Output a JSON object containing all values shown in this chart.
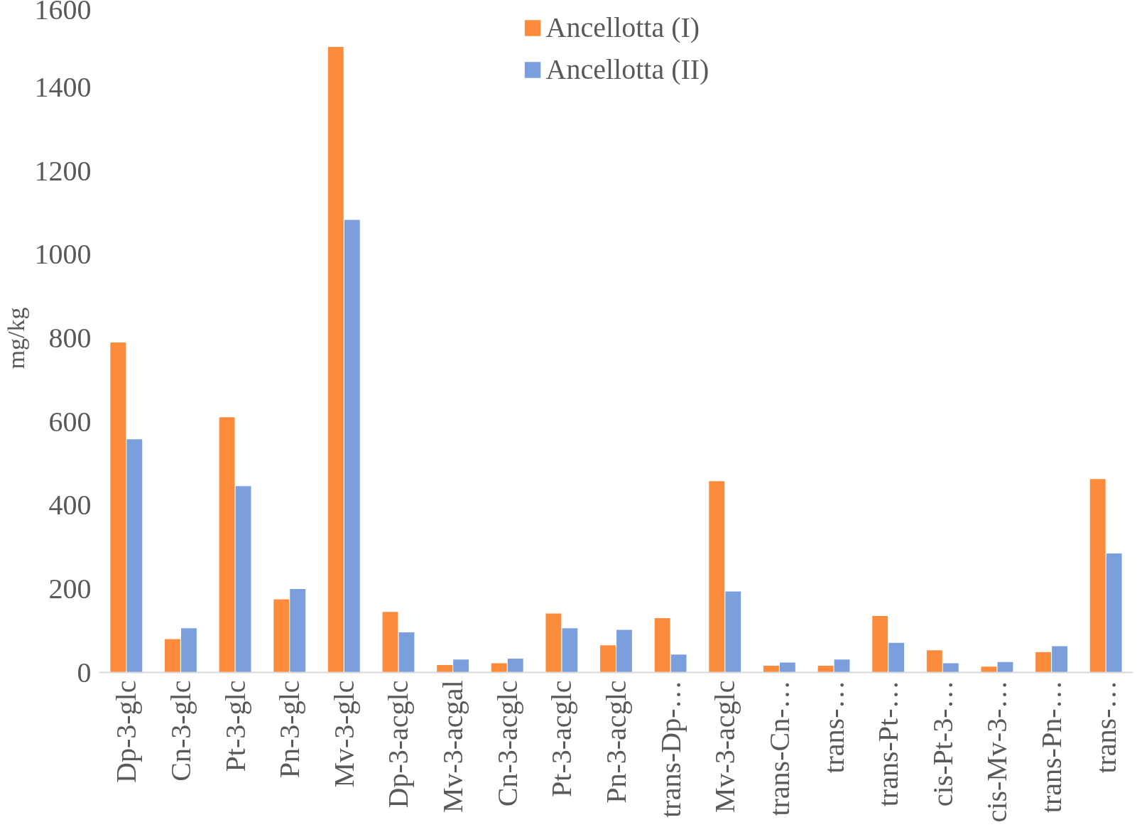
{
  "chart_data": {
    "type": "bar",
    "ylabel": "mg/kg",
    "categories": [
      "Dp-3-glc",
      "Cn-3-glc",
      "Pt-3-glc",
      "Pn-3-glc",
      "Mv-3-glc",
      "Dp-3-acglc",
      "Mv-3-acgal",
      "Cn-3-acglc",
      "Pt-3-acglc",
      "Pn-3-acglc",
      "trans-Dp-…",
      "Mv-3-acglc",
      "trans-Cn-…",
      "trans-…",
      "trans-Pt-…",
      "cis-Pt-3-…",
      "cis-Mv-3-…",
      "trans-Pn-…",
      "trans-…"
    ],
    "series": [
      {
        "name": "Ancellotta (I)",
        "color": "#fd8b3c",
        "values": [
          790,
          80,
          611,
          175,
          1497,
          145,
          18,
          22,
          141,
          65,
          130,
          458,
          16,
          16,
          135,
          53,
          14,
          49,
          463
        ]
      },
      {
        "name": "Ancellotta (II)",
        "color": "#7b9fdc",
        "values": [
          558,
          106,
          446,
          200,
          1083,
          96,
          31,
          33,
          106,
          102,
          43,
          194,
          24,
          31,
          71,
          22,
          25,
          63,
          285
        ]
      }
    ],
    "ylim": [
      0,
      1600
    ],
    "yticks": [
      0,
      200,
      400,
      600,
      800,
      1000,
      1200,
      1400,
      1600
    ],
    "grid": false,
    "legend": "top"
  }
}
